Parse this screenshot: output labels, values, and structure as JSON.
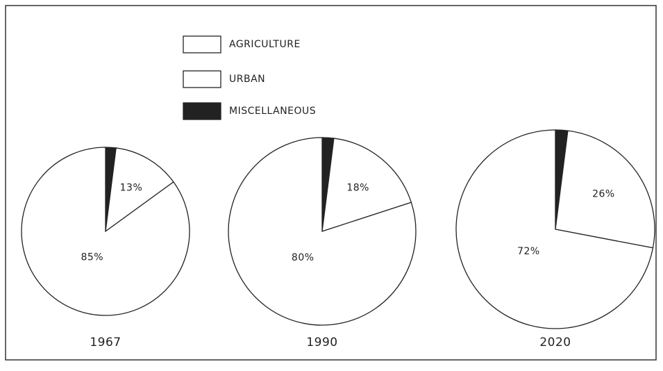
{
  "chart_data": [
    {
      "type": "pie",
      "title": "1967",
      "categories": [
        "AGRICULTURE",
        "URBAN",
        "MISCELLANEOUS"
      ],
      "values": [
        85,
        13,
        2
      ],
      "value_labels": [
        "85%",
        "13%",
        "2%"
      ],
      "colors": [
        "#ffffff",
        "#ffffff",
        "#222222"
      ]
    },
    {
      "type": "pie",
      "title": "1990",
      "categories": [
        "AGRICULTURE",
        "URBAN",
        "MISCELLANEOUS"
      ],
      "values": [
        80,
        18,
        2
      ],
      "value_labels": [
        "80%",
        "18%",
        "2%"
      ],
      "colors": [
        "#ffffff",
        "#ffffff",
        "#222222"
      ]
    },
    {
      "type": "pie",
      "title": "2020",
      "categories": [
        "AGRICULTURE",
        "URBAN",
        "MISCELLANEOUS"
      ],
      "values": [
        72,
        26,
        2
      ],
      "value_labels": [
        "72%",
        "26%",
        "2%"
      ],
      "colors": [
        "#ffffff",
        "#ffffff",
        "#222222"
      ]
    }
  ]
}
